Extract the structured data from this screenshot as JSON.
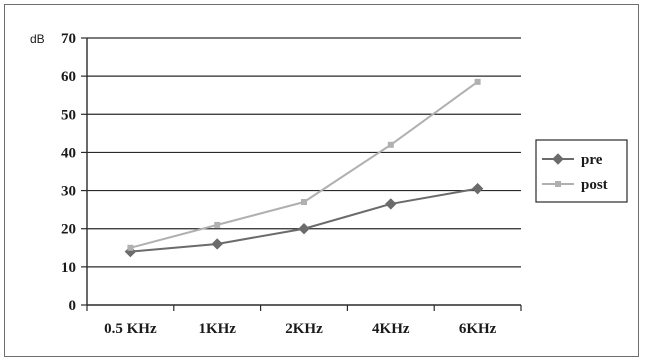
{
  "chart_data": {
    "type": "line",
    "title": "",
    "xlabel": "",
    "ylabel": "dB",
    "ylim": [
      0,
      70
    ],
    "y_ticks": [
      "0",
      "10",
      "20",
      "30",
      "40",
      "50",
      "60",
      "70"
    ],
    "categories": [
      "0.5 KHz",
      "1KHz",
      "2KHz",
      "4KHz",
      "6KHz"
    ],
    "grid": true,
    "legend_position": "right",
    "series": [
      {
        "name": "pre",
        "color": "#6b6b6b",
        "marker": "diamond",
        "values": [
          14,
          16,
          20,
          26.5,
          30.5
        ]
      },
      {
        "name": "post",
        "color": "#b0b0b0",
        "marker": "square",
        "values": [
          15,
          21,
          27,
          42,
          58.5
        ]
      }
    ]
  }
}
